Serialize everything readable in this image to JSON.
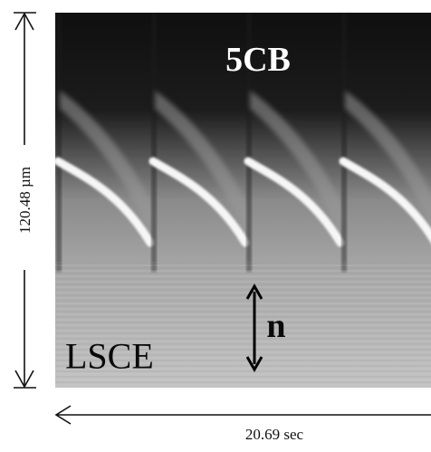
{
  "figure": {
    "title": "5CB",
    "corner_label": "LSCE",
    "director_label": "n",
    "vertical_scale": "120.48 µm",
    "horizontal_scale": "20.69 sec"
  },
  "colors": {
    "top": "#111111",
    "mid": "#8c8c8c",
    "bottom": "#bdbdbd",
    "front_highlight": "#f4f4f4"
  },
  "icons": [
    "arrow-up-down-icon",
    "arrow-left-icon",
    "double-arrow-icon"
  ]
}
